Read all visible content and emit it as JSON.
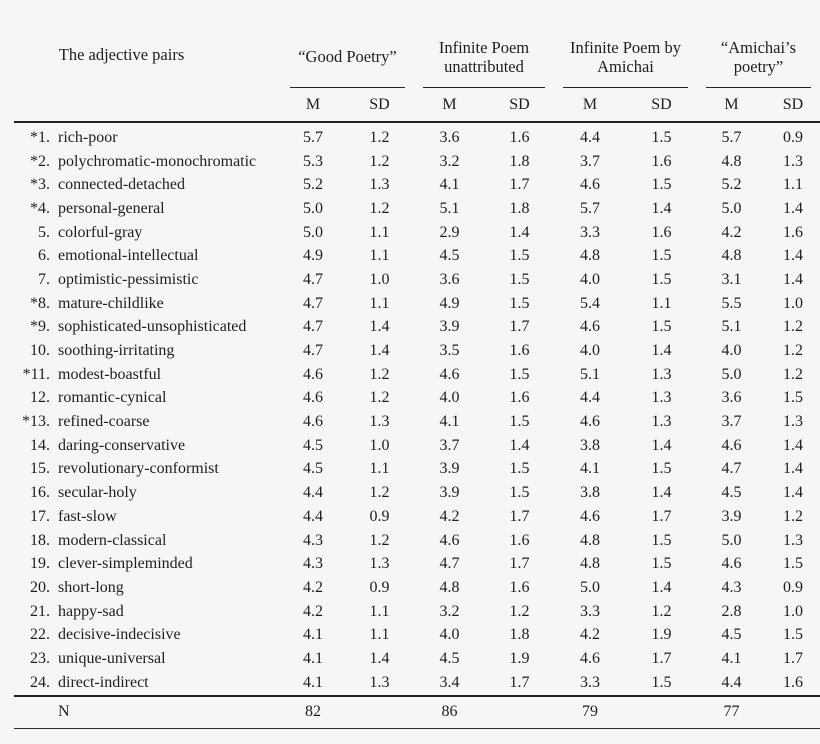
{
  "table": {
    "row_header": "The adjective pairs",
    "group_headers": [
      [
        "“Good Poetry”",
        ""
      ],
      [
        "Infinite Poem",
        "unattributed"
      ],
      [
        "Infinite Poem by",
        "Amichai"
      ],
      [
        "“Amichai’s",
        "poetry”"
      ]
    ],
    "stat_headers": [
      "M",
      "SD"
    ],
    "rows": [
      {
        "num": "*1.",
        "label": "rich-poor",
        "values": [
          "5.7",
          "1.2",
          "3.6",
          "1.6",
          "4.4",
          "1.5",
          "5.7",
          "0.9"
        ]
      },
      {
        "num": "*2.",
        "label": "polychromatic-monochromatic",
        "values": [
          "5.3",
          "1.2",
          "3.2",
          "1.8",
          "3.7",
          "1.6",
          "4.8",
          "1.3"
        ]
      },
      {
        "num": "*3.",
        "label": "connected-detached",
        "values": [
          "5.2",
          "1.3",
          "4.1",
          "1.7",
          "4.6",
          "1.5",
          "5.2",
          "1.1"
        ]
      },
      {
        "num": "*4.",
        "label": "personal-general",
        "values": [
          "5.0",
          "1.2",
          "5.1",
          "1.8",
          "5.7",
          "1.4",
          "5.0",
          "1.4"
        ]
      },
      {
        "num": "5.",
        "label": "colorful-gray",
        "values": [
          "5.0",
          "1.1",
          "2.9",
          "1.4",
          "3.3",
          "1.6",
          "4.2",
          "1.6"
        ]
      },
      {
        "num": "6.",
        "label": "emotional-intellectual",
        "values": [
          "4.9",
          "1.1",
          "4.5",
          "1.5",
          "4.8",
          "1.5",
          "4.8",
          "1.4"
        ]
      },
      {
        "num": "7.",
        "label": "optimistic-pessimistic",
        "values": [
          "4.7",
          "1.0",
          "3.6",
          "1.5",
          "4.0",
          "1.5",
          "3.1",
          "1.4"
        ]
      },
      {
        "num": "*8.",
        "label": "mature-childlike",
        "values": [
          "4.7",
          "1.1",
          "4.9",
          "1.5",
          "5.4",
          "1.1",
          "5.5",
          "1.0"
        ]
      },
      {
        "num": "*9.",
        "label": "sophisticated-unsophisticated",
        "values": [
          "4.7",
          "1.4",
          "3.9",
          "1.7",
          "4.6",
          "1.5",
          "5.1",
          "1.2"
        ]
      },
      {
        "num": "10.",
        "label": "soothing-irritating",
        "values": [
          "4.7",
          "1.4",
          "3.5",
          "1.6",
          "4.0",
          "1.4",
          "4.0",
          "1.2"
        ]
      },
      {
        "num": "*11.",
        "label": "modest-boastful",
        "values": [
          "4.6",
          "1.2",
          "4.6",
          "1.5",
          "5.1",
          "1.3",
          "5.0",
          "1.2"
        ]
      },
      {
        "num": "12.",
        "label": "romantic-cynical",
        "values": [
          "4.6",
          "1.2",
          "4.0",
          "1.6",
          "4.4",
          "1.3",
          "3.6",
          "1.5"
        ]
      },
      {
        "num": "*13.",
        "label": "refined-coarse",
        "values": [
          "4.6",
          "1.3",
          "4.1",
          "1.5",
          "4.6",
          "1.3",
          "3.7",
          "1.3"
        ]
      },
      {
        "num": "14.",
        "label": "daring-conservative",
        "values": [
          "4.5",
          "1.0",
          "3.7",
          "1.4",
          "3.8",
          "1.4",
          "4.6",
          "1.4"
        ]
      },
      {
        "num": "15.",
        "label": "revolutionary-conformist",
        "values": [
          "4.5",
          "1.1",
          "3.9",
          "1.5",
          "4.1",
          "1.5",
          "4.7",
          "1.4"
        ]
      },
      {
        "num": "16.",
        "label": "secular-holy",
        "values": [
          "4.4",
          "1.2",
          "3.9",
          "1.5",
          "3.8",
          "1.4",
          "4.5",
          "1.4"
        ]
      },
      {
        "num": "17.",
        "label": "fast-slow",
        "values": [
          "4.4",
          "0.9",
          "4.2",
          "1.7",
          "4.6",
          "1.7",
          "3.9",
          "1.2"
        ]
      },
      {
        "num": "18.",
        "label": "modern-classical",
        "values": [
          "4.3",
          "1.2",
          "4.6",
          "1.6",
          "4.8",
          "1.5",
          "5.0",
          "1.3"
        ]
      },
      {
        "num": "19.",
        "label": "clever-simpleminded",
        "values": [
          "4.3",
          "1.3",
          "4.7",
          "1.7",
          "4.8",
          "1.5",
          "4.6",
          "1.5"
        ]
      },
      {
        "num": "20.",
        "label": "short-long",
        "values": [
          "4.2",
          "0.9",
          "4.8",
          "1.6",
          "5.0",
          "1.4",
          "4.3",
          "0.9"
        ]
      },
      {
        "num": "21.",
        "label": "happy-sad",
        "values": [
          "4.2",
          "1.1",
          "3.2",
          "1.2",
          "3.3",
          "1.2",
          "2.8",
          "1.0"
        ]
      },
      {
        "num": "22.",
        "label": "decisive-indecisive",
        "values": [
          "4.1",
          "1.1",
          "4.0",
          "1.8",
          "4.2",
          "1.9",
          "4.5",
          "1.5"
        ]
      },
      {
        "num": "23.",
        "label": "unique-universal",
        "values": [
          "4.1",
          "1.4",
          "4.5",
          "1.9",
          "4.6",
          "1.7",
          "4.1",
          "1.7"
        ]
      },
      {
        "num": "24.",
        "label": "direct-indirect",
        "values": [
          "4.1",
          "1.3",
          "3.4",
          "1.7",
          "3.3",
          "1.5",
          "4.4",
          "1.6"
        ]
      }
    ],
    "footer": {
      "label": "N",
      "values": [
        "82",
        "86",
        "79",
        "77"
      ]
    }
  },
  "colors": {
    "background": "#f6f6f5",
    "text": "#1e1e1e",
    "rule": "#242424"
  }
}
